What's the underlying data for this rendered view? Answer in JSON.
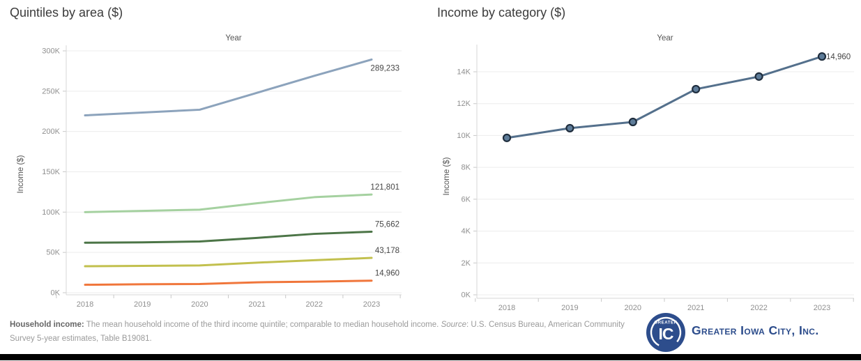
{
  "chart_data": [
    {
      "type": "line",
      "title": "Quintiles by area ($)",
      "xlabel": "Year",
      "ylabel": "Income ($)",
      "x_categories": [
        "2018",
        "2019",
        "2020",
        "2021",
        "2022",
        "2023"
      ],
      "ylim": [
        0,
        300000
      ],
      "grid": "horizontal",
      "legend": "none",
      "markers": false,
      "y_ticks": [
        {
          "value": 0,
          "label": "0K"
        },
        {
          "value": 50000,
          "label": "50K"
        },
        {
          "value": 100000,
          "label": "100K"
        },
        {
          "value": 150000,
          "label": "150K"
        },
        {
          "value": 200000,
          "label": "200K"
        },
        {
          "value": 250000,
          "label": "250K"
        },
        {
          "value": 300000,
          "label": "300K"
        }
      ],
      "series": [
        {
          "color": "#8ca3bc",
          "values": [
            220000,
            223500,
            227000,
            248000,
            269000,
            289233
          ],
          "end_label": "289,233",
          "label_dy": 16
        },
        {
          "color": "#a5d1a0",
          "values": [
            100000,
            101500,
            103000,
            111000,
            118500,
            121801
          ],
          "end_label": "121,801",
          "label_dy": -7
        },
        {
          "color": "#4c7547",
          "values": [
            62000,
            62500,
            63500,
            68000,
            73000,
            75662
          ],
          "end_label": "75,662",
          "label_dy": -7
        },
        {
          "color": "#c2c04e",
          "values": [
            32800,
            33300,
            33800,
            37300,
            40300,
            43178
          ],
          "end_label": "43,178",
          "label_dy": -7
        },
        {
          "color": "#f0763b",
          "values": [
            9850,
            10460,
            10850,
            12910,
            13700,
            14960
          ],
          "end_label": "14,960",
          "label_dy": -7
        }
      ]
    },
    {
      "type": "line",
      "title": "Income by category ($)",
      "xlabel": "Year",
      "ylabel": "Income ($)",
      "x_categories": [
        "2018",
        "2019",
        "2020",
        "2021",
        "2022",
        "2023"
      ],
      "ylim": [
        0,
        15500
      ],
      "grid": "horizontal",
      "legend": "none",
      "markers": true,
      "marker_fill": "#5e7c99",
      "marker_stroke": "#1f2d3d",
      "y_ticks": [
        {
          "value": 0,
          "label": "0K"
        },
        {
          "value": 2000,
          "label": "2K"
        },
        {
          "value": 4000,
          "label": "4K"
        },
        {
          "value": 6000,
          "label": "6K"
        },
        {
          "value": 8000,
          "label": "8K"
        },
        {
          "value": 10000,
          "label": "10K"
        },
        {
          "value": 12000,
          "label": "12K"
        },
        {
          "value": 14000,
          "label": "14K"
        }
      ],
      "series": [
        {
          "color": "#54708c",
          "values": [
            9850,
            10460,
            10850,
            12910,
            13700,
            14960
          ],
          "end_label": "14,960",
          "label_side": "right"
        }
      ]
    }
  ],
  "footer": {
    "term": "Household income:",
    "definition": " The mean household income of the third income quintile; comparable to median household income. ",
    "source_word": "Source",
    "source_rest": ": U.S. Census Bureau, American Community Survey 5-year estimates, Table B19081."
  },
  "logo": {
    "badge_top": "GREATER",
    "badge_main": "IC",
    "wordmark": "Greater Iowa City, Inc.",
    "navy": "#2d4d8c"
  },
  "ui_colors": {
    "background": "#ffffff",
    "bottom_bar": "#000000",
    "gridline": "#ececec",
    "tick_label": "#8f8f8f"
  }
}
